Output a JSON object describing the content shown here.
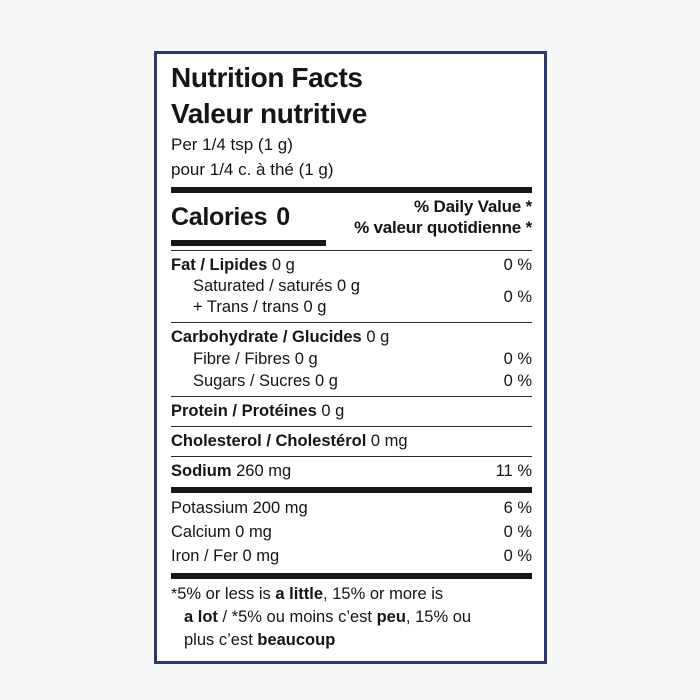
{
  "page": {
    "background_color": "#f7f8f9"
  },
  "label": {
    "border_color": "#2b3a6b",
    "text_color": "#151515",
    "title_en": "Nutrition Facts",
    "title_fr": "Valeur nutritive",
    "serving_en": "Per 1/4 tsp (1 g)",
    "serving_fr": "pour 1/4 c. à thé (1 g)",
    "calories_label": "Calories",
    "calories_value": "0",
    "dv_header_en": "% Daily Value *",
    "dv_header_fr": "% valeur quotidienne *",
    "rows": {
      "fat": {
        "bold": "Fat / Lipides",
        "rest": "0 g",
        "dv": "0 %"
      },
      "saturated": {
        "line1": "Saturated / saturés 0 g",
        "line2": "+ Trans / trans 0 g",
        "dv": "0 %"
      },
      "carbohydrate": {
        "bold": "Carbohydrate / Glucides",
        "rest": "0 g"
      },
      "fibre": {
        "text": "Fibre / Fibres 0 g",
        "dv": "0 %"
      },
      "sugars": {
        "text": "Sugars / Sucres 0 g",
        "dv": "0 %"
      },
      "protein": {
        "bold": "Protein / Protéines",
        "rest": "0 g"
      },
      "cholesterol": {
        "bold": "Cholesterol / Cholestérol",
        "rest": "0 mg"
      },
      "sodium": {
        "bold": "Sodium",
        "rest": "260 mg",
        "dv": "11 %"
      },
      "potassium": {
        "text": "Potassium 200 mg",
        "dv": "6 %"
      },
      "calcium": {
        "text": "Calcium 0 mg",
        "dv": "0 %"
      },
      "iron": {
        "text": "Iron / Fer 0 mg",
        "dv": "0 %"
      }
    },
    "footnote": {
      "star": "*",
      "l1a": "5% or less is ",
      "l1b": "a little",
      "l1c": ", 15% or more is",
      "l2a": "a lot",
      "l2b": " / *5% ou moins c’est ",
      "l2c": "peu",
      "l2d": ", 15% ou",
      "l3a": "plus c’est ",
      "l3b": "beaucoup"
    }
  }
}
